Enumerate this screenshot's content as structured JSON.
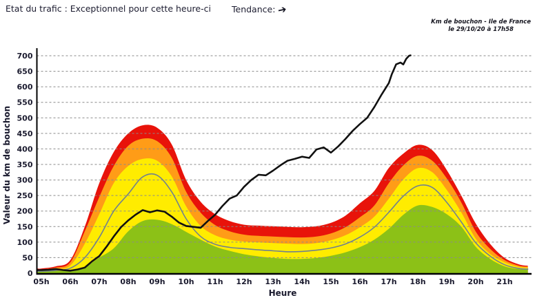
{
  "header": {
    "traffic_state": "Etat du trafic : Exceptionnel pour cette heure-ci",
    "trend_label": "Tendance:",
    "trend_arrow": "➔"
  },
  "meta": {
    "line1": "Km de bouchon - Ile de France",
    "line2": "le 29/10/20 à 17h58"
  },
  "chart_data": {
    "type": "area",
    "title": "Km de bouchon - Ile de France",
    "xlabel": "Heure",
    "ylabel": "Valeur du km de bouchon",
    "ylim": [
      0,
      700
    ],
    "grid": "horizontal-dashed",
    "legend_position": "none",
    "y_ticks": [
      0,
      50,
      100,
      150,
      200,
      250,
      300,
      350,
      400,
      450,
      500,
      550,
      600,
      650,
      700
    ],
    "x_ticks": [
      "05h",
      "06h",
      "07h",
      "08h",
      "09h",
      "10h",
      "11h",
      "12h",
      "13h",
      "14h",
      "15h",
      "16h",
      "17h",
      "18h",
      "19h",
      "20h",
      "21h"
    ],
    "x_tick_hours": [
      5,
      6,
      7,
      8,
      9,
      10,
      11,
      12,
      13,
      14,
      15,
      16,
      17,
      18,
      19,
      20,
      21
    ],
    "colors": {
      "red_band": "#e8130a",
      "orange_band": "#ff9c17",
      "yellow_band": "#ffec00",
      "green_band": "#8cc117",
      "average_line": "#708090",
      "today_line": "#111111",
      "gridline": "#8a8a8a",
      "axis": "#000000"
    },
    "series": [
      {
        "name": "red-band",
        "kind": "area",
        "color": "#e8130a",
        "points": [
          [
            4.87,
            15
          ],
          [
            5,
            15
          ],
          [
            5.5,
            22
          ],
          [
            6,
            42
          ],
          [
            6.5,
            150
          ],
          [
            7,
            290
          ],
          [
            7.5,
            390
          ],
          [
            8,
            450
          ],
          [
            8.5,
            476
          ],
          [
            9,
            468
          ],
          [
            9.5,
            415
          ],
          [
            10,
            300
          ],
          [
            10.5,
            230
          ],
          [
            11,
            190
          ],
          [
            11.5,
            168
          ],
          [
            12,
            156
          ],
          [
            12.5,
            153
          ],
          [
            13,
            151
          ],
          [
            13.5,
            149
          ],
          [
            14,
            148
          ],
          [
            14.5,
            151
          ],
          [
            15,
            162
          ],
          [
            15.5,
            185
          ],
          [
            16,
            225
          ],
          [
            16.5,
            265
          ],
          [
            17,
            339
          ],
          [
            17.5,
            385
          ],
          [
            18,
            413
          ],
          [
            18.5,
            396
          ],
          [
            19,
            332
          ],
          [
            19.5,
            250
          ],
          [
            20,
            160
          ],
          [
            20.5,
            94
          ],
          [
            21,
            49
          ],
          [
            21.5,
            28
          ],
          [
            21.8,
            24
          ]
        ]
      },
      {
        "name": "orange-band",
        "kind": "area",
        "color": "#ff9c17",
        "points": [
          [
            4.87,
            12
          ],
          [
            5,
            12
          ],
          [
            5.5,
            18
          ],
          [
            6,
            35
          ],
          [
            6.5,
            135
          ],
          [
            7,
            245
          ],
          [
            7.5,
            345
          ],
          [
            8,
            410
          ],
          [
            8.5,
            433
          ],
          [
            9,
            425
          ],
          [
            9.5,
            372
          ],
          [
            10,
            262
          ],
          [
            10.5,
            195
          ],
          [
            11,
            155
          ],
          [
            11.5,
            135
          ],
          [
            12,
            124
          ],
          [
            12.5,
            120
          ],
          [
            13,
            118
          ],
          [
            13.5,
            116
          ],
          [
            14,
            115
          ],
          [
            14.5,
            118
          ],
          [
            15,
            128
          ],
          [
            15.5,
            148
          ],
          [
            16,
            180
          ],
          [
            16.5,
            218
          ],
          [
            17,
            290
          ],
          [
            17.5,
            347
          ],
          [
            18,
            378
          ],
          [
            18.5,
            362
          ],
          [
            19,
            305
          ],
          [
            19.5,
            228
          ],
          [
            20,
            134
          ],
          [
            20.5,
            78
          ],
          [
            21,
            42
          ],
          [
            21.5,
            24
          ],
          [
            21.8,
            21
          ]
        ]
      },
      {
        "name": "yellow-band",
        "kind": "area",
        "color": "#ffec00",
        "points": [
          [
            4.87,
            9
          ],
          [
            5,
            9
          ],
          [
            5.5,
            13
          ],
          [
            6,
            25
          ],
          [
            6.5,
            95
          ],
          [
            7,
            190
          ],
          [
            7.5,
            290
          ],
          [
            8,
            345
          ],
          [
            8.5,
            368
          ],
          [
            9,
            362
          ],
          [
            9.5,
            312
          ],
          [
            10,
            215
          ],
          [
            10.5,
            152
          ],
          [
            11,
            122
          ],
          [
            11.5,
            108
          ],
          [
            12,
            102
          ],
          [
            12.5,
            99
          ],
          [
            13,
            97
          ],
          [
            13.5,
            95
          ],
          [
            14,
            94
          ],
          [
            14.5,
            97
          ],
          [
            15,
            106
          ],
          [
            15.5,
            122
          ],
          [
            16,
            148
          ],
          [
            16.5,
            182
          ],
          [
            17,
            240
          ],
          [
            17.5,
            302
          ],
          [
            18,
            338
          ],
          [
            18.5,
            325
          ],
          [
            19,
            268
          ],
          [
            19.5,
            196
          ],
          [
            20,
            111
          ],
          [
            20.5,
            62
          ],
          [
            21,
            35
          ],
          [
            21.5,
            20
          ],
          [
            21.8,
            18
          ]
        ]
      },
      {
        "name": "green-band",
        "kind": "area",
        "color": "#8cc117",
        "points": [
          [
            4.87,
            6
          ],
          [
            5,
            6
          ],
          [
            5.5,
            7
          ],
          [
            6,
            9
          ],
          [
            6.5,
            20
          ],
          [
            7,
            50
          ],
          [
            7.5,
            80
          ],
          [
            8,
            135
          ],
          [
            8.5,
            168
          ],
          [
            9,
            172
          ],
          [
            9.5,
            158
          ],
          [
            10,
            133
          ],
          [
            10.5,
            108
          ],
          [
            11,
            86
          ],
          [
            11.5,
            72
          ],
          [
            12,
            61
          ],
          [
            12.5,
            54
          ],
          [
            13,
            49
          ],
          [
            13.5,
            46
          ],
          [
            14,
            46
          ],
          [
            14.5,
            49
          ],
          [
            15,
            56
          ],
          [
            15.5,
            67
          ],
          [
            16,
            84
          ],
          [
            16.5,
            108
          ],
          [
            17,
            143
          ],
          [
            17.5,
            188
          ],
          [
            18,
            218
          ],
          [
            18.5,
            213
          ],
          [
            19,
            190
          ],
          [
            19.5,
            150
          ],
          [
            20,
            85
          ],
          [
            20.5,
            46
          ],
          [
            21,
            22
          ],
          [
            21.5,
            13
          ],
          [
            21.8,
            12
          ]
        ]
      },
      {
        "name": "average-line",
        "kind": "line",
        "color": "#708090",
        "width": 1.6,
        "points": [
          [
            4.87,
            6
          ],
          [
            5,
            6
          ],
          [
            5.5,
            9
          ],
          [
            6,
            16
          ],
          [
            6.5,
            50
          ],
          [
            7,
            115
          ],
          [
            7.5,
            200
          ],
          [
            8,
            255
          ],
          [
            8.5,
            310
          ],
          [
            9,
            315
          ],
          [
            9.5,
            262
          ],
          [
            10,
            175
          ],
          [
            10.5,
            118
          ],
          [
            11,
            93
          ],
          [
            11.5,
            83
          ],
          [
            12,
            79
          ],
          [
            12.5,
            75
          ],
          [
            13,
            72
          ],
          [
            13.5,
            69
          ],
          [
            14,
            70
          ],
          [
            14.5,
            74
          ],
          [
            15,
            81
          ],
          [
            15.5,
            94
          ],
          [
            16,
            116
          ],
          [
            16.5,
            148
          ],
          [
            17,
            196
          ],
          [
            17.5,
            248
          ],
          [
            18,
            281
          ],
          [
            18.5,
            276
          ],
          [
            19,
            228
          ],
          [
            19.5,
            165
          ],
          [
            20,
            98
          ],
          [
            20.5,
            55
          ],
          [
            21,
            27
          ],
          [
            21.5,
            15
          ],
          [
            21.8,
            13
          ]
        ]
      },
      {
        "name": "today-line",
        "kind": "jagged-line",
        "color": "#111111",
        "width": 2.6,
        "points": [
          [
            4.87,
            10
          ],
          [
            5,
            10
          ],
          [
            5.25,
            11
          ],
          [
            5.5,
            13
          ],
          [
            5.75,
            10
          ],
          [
            6,
            8
          ],
          [
            6.25,
            12
          ],
          [
            6.5,
            18
          ],
          [
            6.75,
            38
          ],
          [
            7,
            55
          ],
          [
            7.25,
            85
          ],
          [
            7.5,
            118
          ],
          [
            7.75,
            148
          ],
          [
            8,
            170
          ],
          [
            8.25,
            188
          ],
          [
            8.5,
            203
          ],
          [
            8.75,
            196
          ],
          [
            9,
            202
          ],
          [
            9.25,
            198
          ],
          [
            9.5,
            182
          ],
          [
            9.75,
            163
          ],
          [
            10,
            152
          ],
          [
            10.25,
            149
          ],
          [
            10.5,
            146
          ],
          [
            10.75,
            168
          ],
          [
            11,
            188
          ],
          [
            11.25,
            216
          ],
          [
            11.5,
            240
          ],
          [
            11.75,
            250
          ],
          [
            12,
            278
          ],
          [
            12.25,
            300
          ],
          [
            12.5,
            317
          ],
          [
            12.75,
            315
          ],
          [
            13,
            330
          ],
          [
            13.25,
            347
          ],
          [
            13.5,
            362
          ],
          [
            13.75,
            368
          ],
          [
            14,
            375
          ],
          [
            14.25,
            371
          ],
          [
            14.5,
            398
          ],
          [
            14.75,
            405
          ],
          [
            15,
            388
          ],
          [
            15.25,
            408
          ],
          [
            15.5,
            432
          ],
          [
            15.75,
            458
          ],
          [
            16,
            480
          ],
          [
            16.25,
            500
          ],
          [
            16.5,
            535
          ],
          [
            16.75,
            575
          ],
          [
            17,
            612
          ],
          [
            17.1,
            640
          ],
          [
            17.25,
            672
          ],
          [
            17.4,
            678
          ],
          [
            17.5,
            672
          ],
          [
            17.6,
            690
          ],
          [
            17.7,
            700
          ],
          [
            17.75,
            701
          ]
        ]
      }
    ]
  }
}
